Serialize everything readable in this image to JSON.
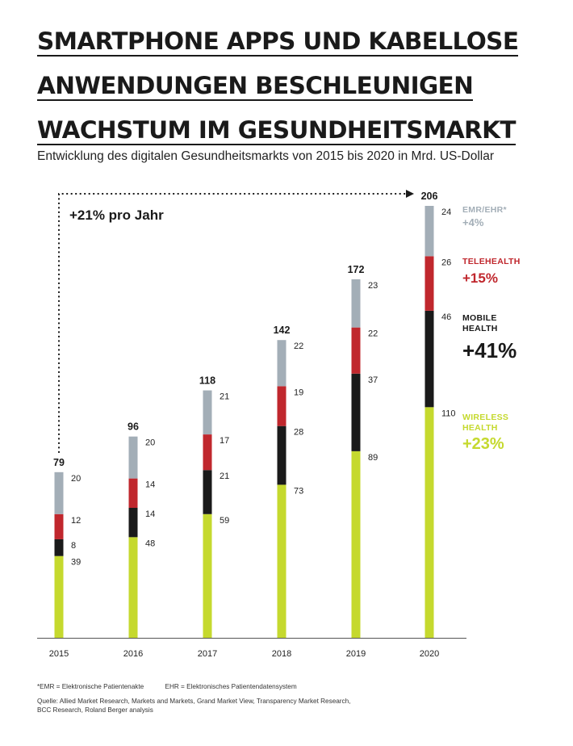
{
  "title_lines": [
    "SMARTPHONE APPS UND KABELLOSE",
    "ANWENDUNGEN BESCHLEUNIGEN",
    "WACHSTUM IM GESUNDHEITSMARKT"
  ],
  "subtitle": "Entwicklung des digitalen Gesundheitsmarkts von 2015 bis 2020 in Mrd. US-Dollar",
  "annotation": "+21% pro Jahr",
  "footnotes": {
    "emr": "*EMR = Elektronische Patientenakte",
    "ehr": "EHR = Elektronisches Patientendatensystem",
    "source_line1": "Quelle: Allied Market Research, Markets and Markets, Grand Market View, Transparency Market Research,",
    "source_line2": "BCC Research, Roland Berger analysis"
  },
  "chart_data": {
    "type": "bar",
    "stacked": true,
    "categories": [
      "2015",
      "2016",
      "2017",
      "2018",
      "2019",
      "2020"
    ],
    "totals": [
      79,
      96,
      118,
      142,
      172,
      206
    ],
    "series": [
      {
        "name": "WIRELESS HEALTH",
        "growth": "+23%",
        "color": "#c5d92e",
        "values": [
          39,
          48,
          59,
          73,
          89,
          110
        ]
      },
      {
        "name": "MOBILE HEALTH",
        "growth": "+41%",
        "color": "#1a1a1a",
        "values": [
          8,
          14,
          21,
          28,
          37,
          46
        ]
      },
      {
        "name": "TELEHEALTH",
        "growth": "+15%",
        "color": "#c0272d",
        "values": [
          12,
          14,
          17,
          19,
          22,
          26
        ]
      },
      {
        "name": "EMR/EHR*",
        "growth": "+4%",
        "color": "#a3aeb7",
        "values": [
          20,
          20,
          21,
          22,
          23,
          24
        ]
      }
    ],
    "ylim": [
      0,
      206
    ],
    "legend_position": "right"
  }
}
